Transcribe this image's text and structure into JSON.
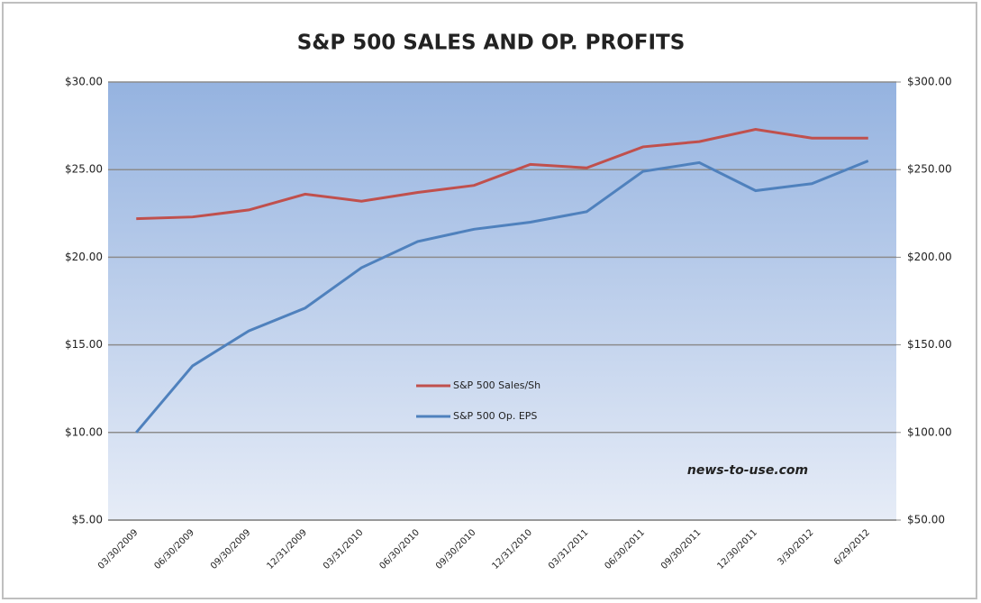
{
  "chart_data": {
    "type": "line",
    "title": "S&P 500 SALES AND OP. PROFITS",
    "annotation": "news-to-use.com",
    "categories": [
      "03/30/2009",
      "06/30/2009",
      "09/30/2009",
      "12/31/2009",
      "03/31/2010",
      "06/30/2010",
      "09/30/2010",
      "12/31/2010",
      "03/31/2011",
      "06/30/2011",
      "09/30/2011",
      "12/30/2011",
      "3/30/2012",
      "6/29/2012"
    ],
    "series": [
      {
        "name": "S&P 500 Sales/Sh",
        "color": "#c0504d",
        "axis": "y2",
        "values": [
          222,
          223,
          227,
          236,
          232,
          237,
          241,
          253,
          251,
          263,
          266,
          273,
          268,
          268
        ]
      },
      {
        "name": "S&P 500 Op. EPS",
        "color": "#4f81bd",
        "values": [
          10.0,
          13.8,
          15.8,
          17.1,
          19.4,
          20.9,
          21.6,
          22.0,
          22.6,
          24.9,
          25.4,
          23.8,
          24.2,
          25.5
        ]
      }
    ],
    "ylim": [
      5,
      30
    ],
    "yticks": [
      {
        "value": 5,
        "label": "$5.00"
      },
      {
        "value": 10,
        "label": "$10.00"
      },
      {
        "value": 15,
        "label": "$15.00"
      },
      {
        "value": 20,
        "label": "$20.00"
      },
      {
        "value": 25,
        "label": "$25.00"
      },
      {
        "value": 30,
        "label": "$30.00"
      }
    ],
    "y2lim": [
      50,
      300
    ],
    "y2ticks": [
      {
        "value": 50,
        "label": "$50.00"
      },
      {
        "value": 100,
        "label": "$100.00"
      },
      {
        "value": 150,
        "label": "$150.00"
      },
      {
        "value": 200,
        "label": "$200.00"
      },
      {
        "value": 250,
        "label": "$250.00"
      },
      {
        "value": 300,
        "label": "$300.00"
      }
    ],
    "grid": true
  }
}
